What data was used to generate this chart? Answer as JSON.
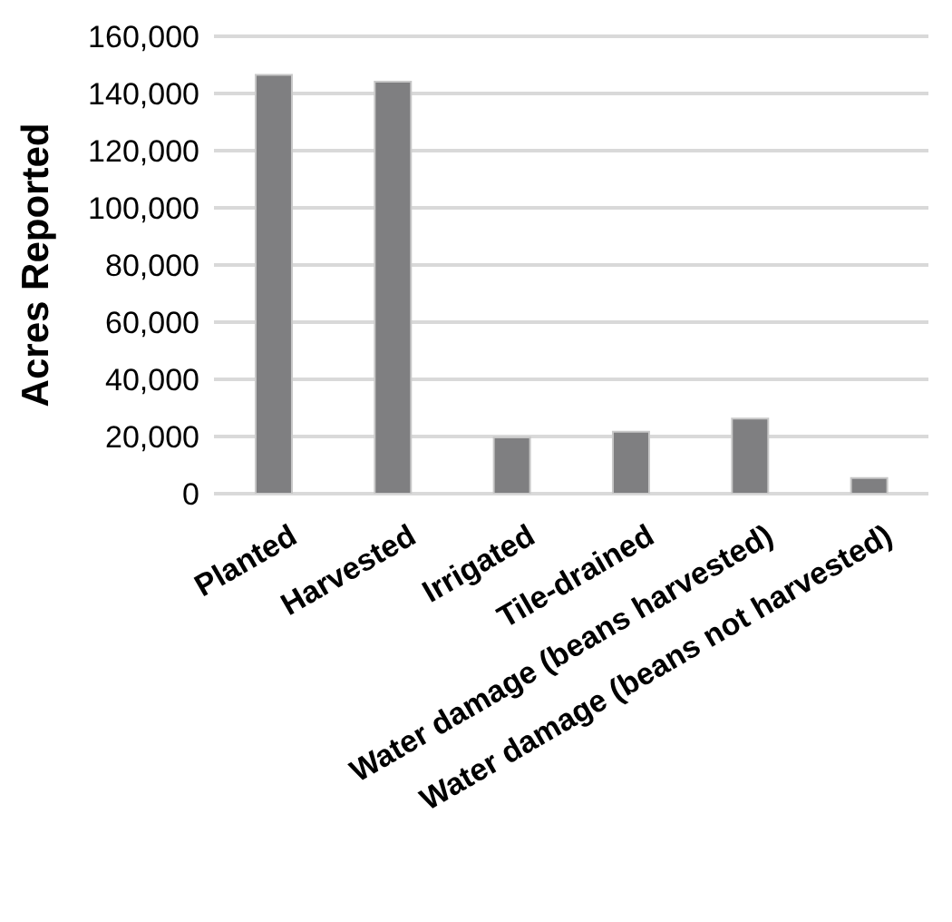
{
  "chart_data": {
    "type": "bar",
    "ylabel": "Acres Reported",
    "categories": [
      "Planted",
      "Harvested",
      "Irrigated",
      "Tile-drained",
      "Water damage (beans harvested)",
      "Water damage (beans not harvested)"
    ],
    "values": [
      146500,
      144100,
      19700,
      21700,
      26300,
      5500
    ],
    "color": "#7f7f81",
    "ylim": [
      0,
      160000
    ],
    "yticks": [
      0,
      {
        "value": 20000,
        "label": "20,000"
      },
      {
        "value": 40000,
        "label": "40,000"
      },
      {
        "value": 60000,
        "label": "60,000"
      },
      {
        "value": 80000,
        "label": "80,000"
      },
      {
        "value": 100000,
        "label": "100,000"
      },
      {
        "value": 120000,
        "label": "120,000"
      },
      {
        "value": 140000,
        "label": "140,000"
      },
      {
        "value": 160000,
        "label": "160,000"
      }
    ],
    "grid": "y"
  }
}
